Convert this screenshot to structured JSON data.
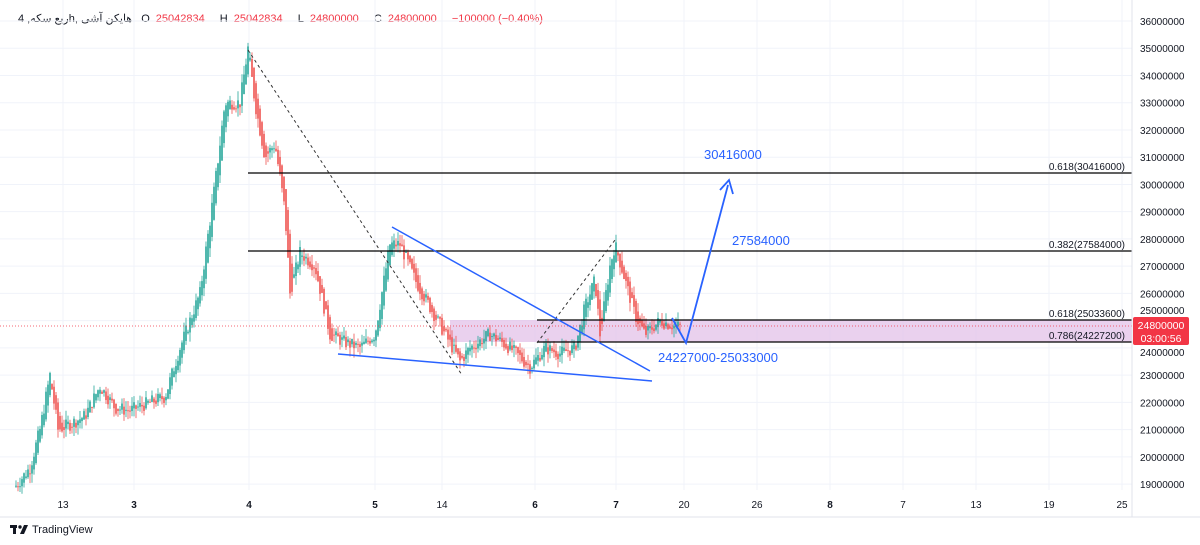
{
  "header": {
    "symbol": "ربع سکه, 4h, هایکن آشی",
    "open_label": "O",
    "open": "25042834",
    "high_label": "H",
    "high": "25042834",
    "low_label": "L",
    "low": "24800000",
    "close_label": "C",
    "close": "24800000",
    "change": "−100000 (−0.40%)"
  },
  "price_axis": [
    "36000000",
    "35000000",
    "34000000",
    "33000000",
    "32000000",
    "31000000",
    "30000000",
    "29000000",
    "28000000",
    "27000000",
    "26000000",
    "25000000",
    "24000000",
    "23000000",
    "22000000",
    "21000000",
    "20000000",
    "19000000"
  ],
  "time_axis": [
    "13",
    "3",
    "4",
    "5",
    "14",
    "6",
    "7",
    "20",
    "26",
    "8",
    "7",
    "13",
    "19",
    "25"
  ],
  "current_price": {
    "value": "24800000",
    "countdown": "03:00:56",
    "color": "#f23645"
  },
  "fib_labels": {
    "a": "0.618(30416000)",
    "b": "0.382(27584000)",
    "c": "0.618(25033600)",
    "d": "0.786(24227200)"
  },
  "annotations": {
    "target1": "30416000",
    "target2": "27584000",
    "zone": "24227000-25033000"
  },
  "colors": {
    "up": "#26a69a",
    "down": "#ef5350",
    "drawing": "#2962ff",
    "zone": "#e1bee7"
  },
  "footer": {
    "brand": "TradingView"
  }
}
